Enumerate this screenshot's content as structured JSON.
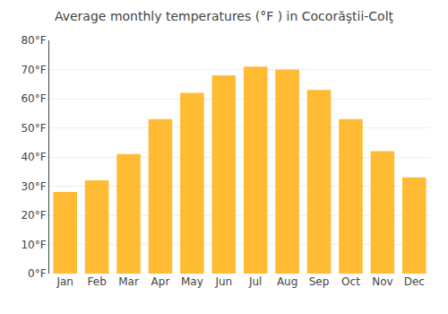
{
  "chart_data": {
    "type": "bar",
    "title": "Average monthly temperatures (°F ) in Cocorăştii-Colţ",
    "categories": [
      "Jan",
      "Feb",
      "Mar",
      "Apr",
      "May",
      "Jun",
      "Jul",
      "Aug",
      "Sep",
      "Oct",
      "Nov",
      "Dec"
    ],
    "values": [
      28,
      32,
      41,
      53,
      62,
      68,
      71,
      70,
      63,
      53,
      42,
      33
    ],
    "color": "#FFBB33",
    "ylim": [
      0,
      80
    ],
    "yticks": [
      {
        "value": 0,
        "label": "0°F"
      },
      {
        "value": 10,
        "label": "10°F"
      },
      {
        "value": 20,
        "label": "20°F"
      },
      {
        "value": 30,
        "label": "30°F"
      },
      {
        "value": 40,
        "label": "40°F"
      },
      {
        "value": 50,
        "label": "50°F"
      },
      {
        "value": 60,
        "label": "60°F"
      },
      {
        "value": 70,
        "label": "70°F"
      },
      {
        "value": 80,
        "label": "80°F"
      }
    ],
    "grid": true
  }
}
